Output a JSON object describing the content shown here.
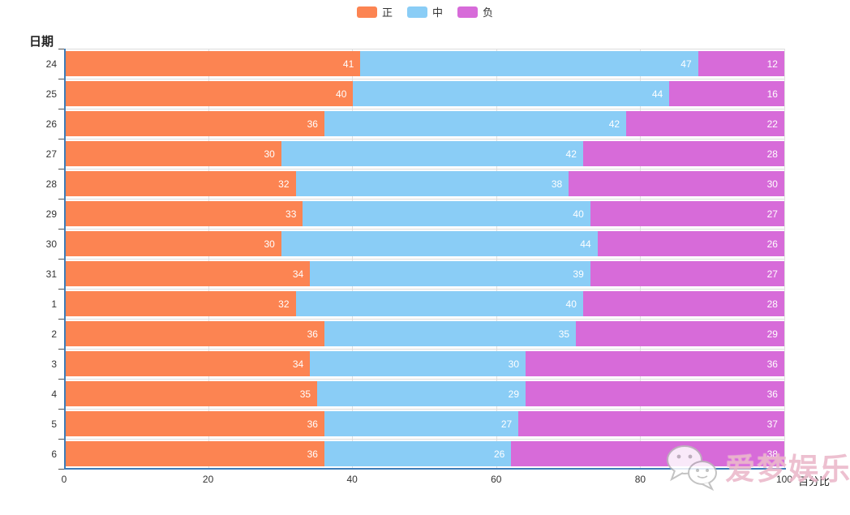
{
  "legend": {
    "items": [
      {
        "label": "正",
        "color": "#fc8452"
      },
      {
        "label": "中",
        "color": "#8acdf6"
      },
      {
        "label": "负",
        "color": "#d76bd9"
      }
    ]
  },
  "axes": {
    "y_name": "日期",
    "x_name": "百分比",
    "x_tick_labels": [
      "0",
      "20",
      "40",
      "60",
      "80",
      "100"
    ]
  },
  "chart_data": {
    "type": "bar",
    "orientation": "horizontal",
    "stacked": true,
    "title": "",
    "xlabel": "百分比",
    "ylabel": "日期",
    "xlim": [
      0,
      100
    ],
    "x_ticks": [
      0,
      20,
      40,
      60,
      80,
      100
    ],
    "grid": true,
    "legend_position": "top",
    "categories": [
      "24",
      "25",
      "26",
      "27",
      "28",
      "29",
      "30",
      "31",
      "1",
      "2",
      "3",
      "4",
      "5",
      "6"
    ],
    "series": [
      {
        "name": "正",
        "color": "#fc8452",
        "values": [
          41,
          40,
          36,
          30,
          32,
          33,
          30,
          34,
          32,
          36,
          34,
          35,
          36,
          36
        ]
      },
      {
        "name": "中",
        "color": "#8acdf6",
        "values": [
          47,
          44,
          42,
          42,
          38,
          40,
          44,
          39,
          40,
          35,
          30,
          29,
          27,
          26
        ]
      },
      {
        "name": "负",
        "color": "#d76bd9",
        "values": [
          12,
          16,
          22,
          28,
          30,
          27,
          26,
          27,
          28,
          29,
          36,
          36,
          37,
          38
        ]
      }
    ]
  },
  "watermark": {
    "text": "爱梦娱乐",
    "icon": "wechat-icon"
  },
  "colors": {
    "axis_line": "#3e7cb8",
    "grid_line": "#e0e0e0",
    "split_line": "#dcdcdc",
    "tick_mark": "#555555",
    "value_label": "#ffffff",
    "watermark_text": "#df8caa"
  }
}
